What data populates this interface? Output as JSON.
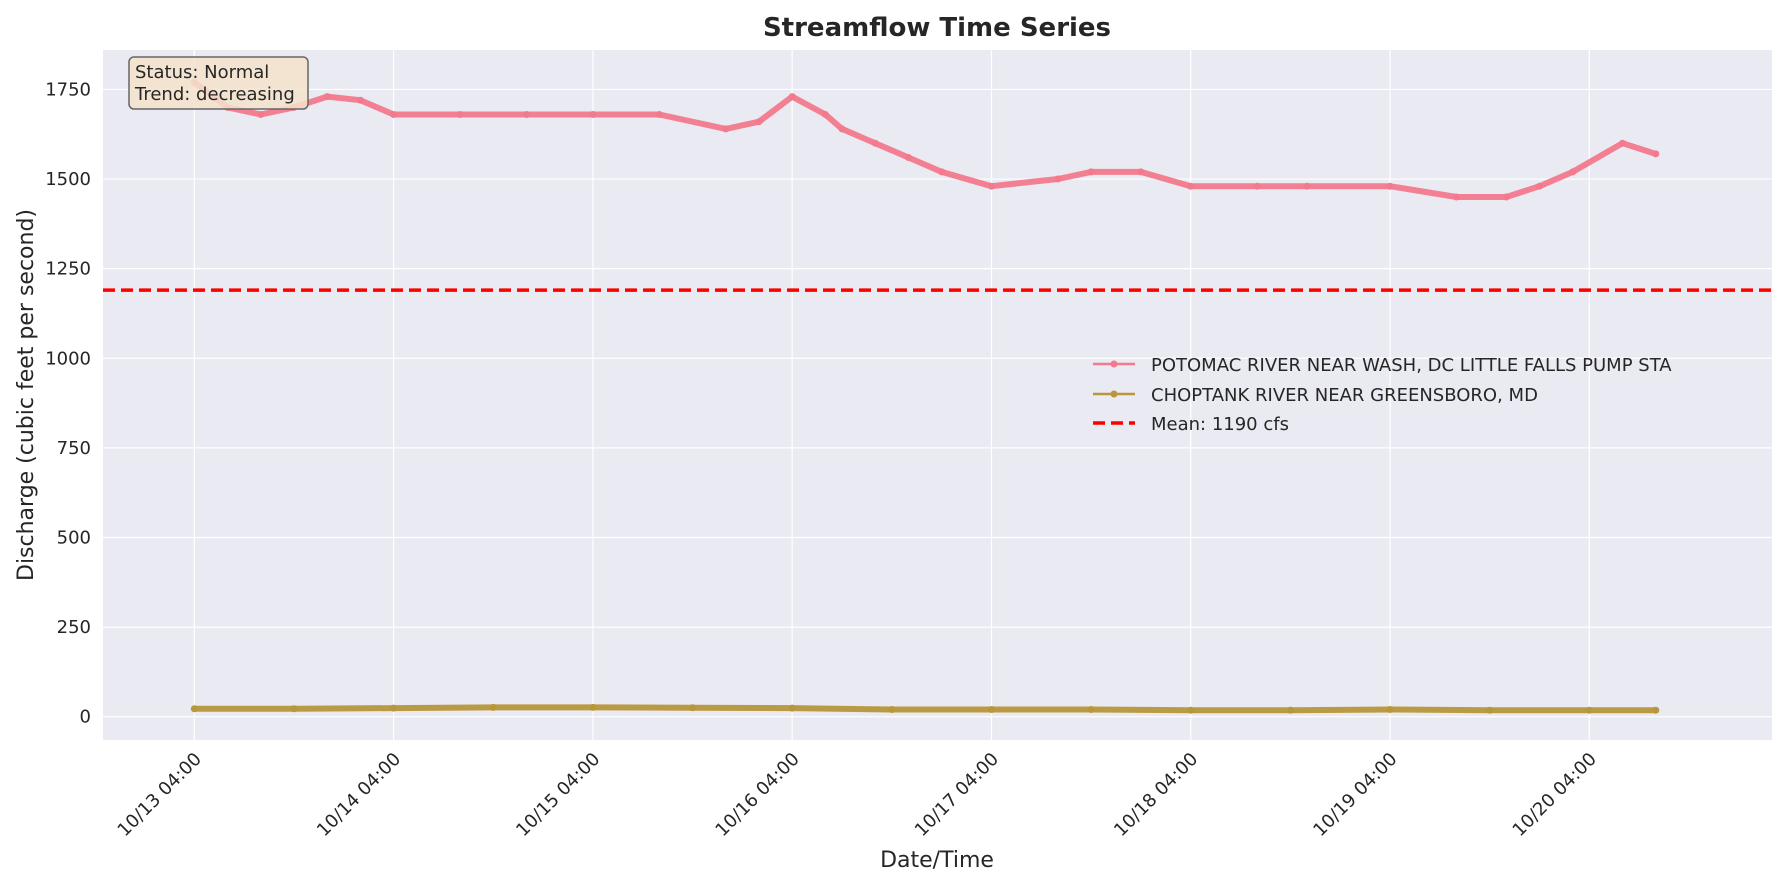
{
  "chart_data": {
    "type": "line",
    "title": "Streamflow Time Series",
    "xlabel": "Date/Time",
    "ylabel": "Discharge (cubic feet per second)",
    "xlim": [
      "2024-10-12T17:00",
      "2024-10-21T02:00"
    ],
    "ylim": [
      -65,
      1860
    ],
    "x_ticks": [
      "2024-10-13T04:00",
      "2024-10-14T04:00",
      "2024-10-15T04:00",
      "2024-10-16T04:00",
      "2024-10-17T04:00",
      "2024-10-18T04:00",
      "2024-10-19T04:00",
      "2024-10-20T04:00"
    ],
    "x_tick_labels": [
      "10/13 04:00",
      "10/14 04:00",
      "10/15 04:00",
      "10/16 04:00",
      "10/17 04:00",
      "10/18 04:00",
      "10/19 04:00",
      "10/20 04:00"
    ],
    "y_ticks": [
      0,
      250,
      500,
      750,
      1000,
      1250,
      1500,
      1750
    ],
    "y_tick_labels": [
      "0",
      "250",
      "500",
      "750",
      "1000",
      "1250",
      "1500",
      "1750"
    ],
    "grid": true,
    "legend_position": "center-right",
    "series": [
      {
        "name": "POTOMAC RIVER NEAR WASH, DC LITTLE FALLS PUMP STA",
        "color": "#f37a8c",
        "x": [
          "2024-10-13T04:00",
          "2024-10-13T08:00",
          "2024-10-13T12:00",
          "2024-10-13T16:00",
          "2024-10-13T20:00",
          "2024-10-14T00:00",
          "2024-10-14T04:00",
          "2024-10-14T12:00",
          "2024-10-14T20:00",
          "2024-10-15T04:00",
          "2024-10-15T12:00",
          "2024-10-15T20:00",
          "2024-10-16T00:00",
          "2024-10-16T04:00",
          "2024-10-16T08:00",
          "2024-10-16T10:00",
          "2024-10-16T14:00",
          "2024-10-16T18:00",
          "2024-10-16T22:00",
          "2024-10-17T04:00",
          "2024-10-17T12:00",
          "2024-10-17T16:00",
          "2024-10-17T22:00",
          "2024-10-18T04:00",
          "2024-10-18T12:00",
          "2024-10-18T18:00",
          "2024-10-19T04:00",
          "2024-10-19T12:00",
          "2024-10-19T18:00",
          "2024-10-19T22:00",
          "2024-10-20T02:00",
          "2024-10-20T08:00",
          "2024-10-20T12:00"
        ],
        "y": [
          1770,
          1700,
          1680,
          1700,
          1730,
          1720,
          1680,
          1680,
          1680,
          1680,
          1680,
          1640,
          1660,
          1730,
          1680,
          1640,
          1600,
          1560,
          1520,
          1480,
          1500,
          1520,
          1520,
          1480,
          1480,
          1480,
          1480,
          1450,
          1450,
          1480,
          1520,
          1600,
          1570
        ]
      },
      {
        "name": "CHOPTANK RIVER NEAR GREENSBORO, MD",
        "color": "#b8963a",
        "x": [
          "2024-10-13T04:00",
          "2024-10-13T16:00",
          "2024-10-14T04:00",
          "2024-10-14T16:00",
          "2024-10-15T04:00",
          "2024-10-15T16:00",
          "2024-10-16T04:00",
          "2024-10-16T16:00",
          "2024-10-17T04:00",
          "2024-10-17T16:00",
          "2024-10-18T04:00",
          "2024-10-18T16:00",
          "2024-10-19T04:00",
          "2024-10-19T16:00",
          "2024-10-20T04:00",
          "2024-10-20T12:00"
        ],
        "y": [
          22,
          22,
          24,
          26,
          26,
          25,
          24,
          20,
          20,
          20,
          18,
          18,
          20,
          18,
          18,
          18
        ]
      },
      {
        "name": "Mean: 1190 cfs",
        "color": "#ff0000",
        "type": "hline",
        "y": 1190
      }
    ],
    "annotation": {
      "status": "Status: Normal",
      "trend": "Trend: decreasing"
    }
  }
}
